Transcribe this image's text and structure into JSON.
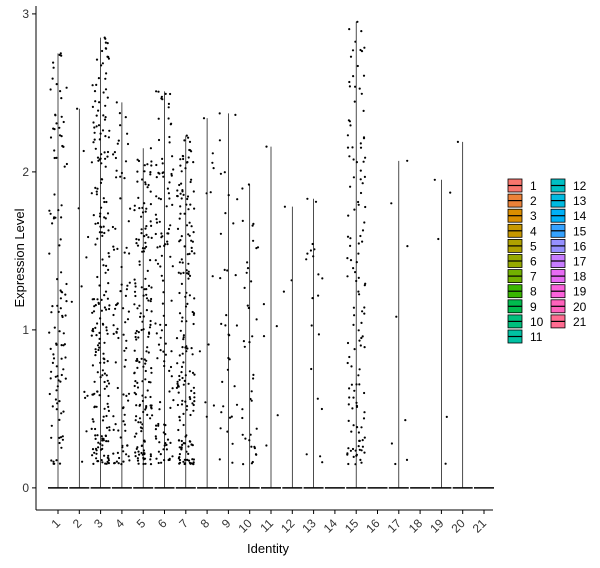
{
  "chart_data": {
    "type": "violin",
    "xlabel": "Identity",
    "ylabel": "Expression Level",
    "ylim": [
      -0.14,
      3.05
    ],
    "yticks": [
      0,
      1,
      2,
      3
    ],
    "categories": [
      "1",
      "2",
      "3",
      "4",
      "5",
      "6",
      "7",
      "8",
      "9",
      "10",
      "11",
      "12",
      "13",
      "14",
      "15",
      "16",
      "17",
      "18",
      "19",
      "20",
      "21"
    ],
    "max_values": [
      2.75,
      2.4,
      2.85,
      2.44,
      2.15,
      2.51,
      2.23,
      2.34,
      2.37,
      1.92,
      2.16,
      1.78,
      1.83,
      0,
      2.95,
      0,
      2.07,
      0,
      1.95,
      2.19,
      0
    ],
    "nonzero_counts": [
      110,
      12,
      220,
      90,
      180,
      120,
      190,
      12,
      35,
      40,
      6,
      3,
      20,
      0,
      130,
      0,
      8,
      0,
      5,
      1,
      0
    ],
    "legend": {
      "placement": "right",
      "columns": 2,
      "entries": [
        "1",
        "2",
        "3",
        "4",
        "5",
        "6",
        "7",
        "8",
        "9",
        "10",
        "11",
        "12",
        "13",
        "14",
        "15",
        "16",
        "17",
        "18",
        "19",
        "20",
        "21"
      ]
    },
    "colors": [
      "#F8766D",
      "#EC8239",
      "#DB8E00",
      "#C79800",
      "#AFA100",
      "#96A900",
      "#72B000",
      "#39B600",
      "#00BB4E",
      "#00BF7D",
      "#00C1A3",
      "#00BFC4",
      "#00BAE0",
      "#00B0F6",
      "#35A2FF",
      "#9590FF",
      "#C77CFF",
      "#E76BF3",
      "#FA62DB",
      "#FF62BC",
      "#FF6C91"
    ]
  }
}
